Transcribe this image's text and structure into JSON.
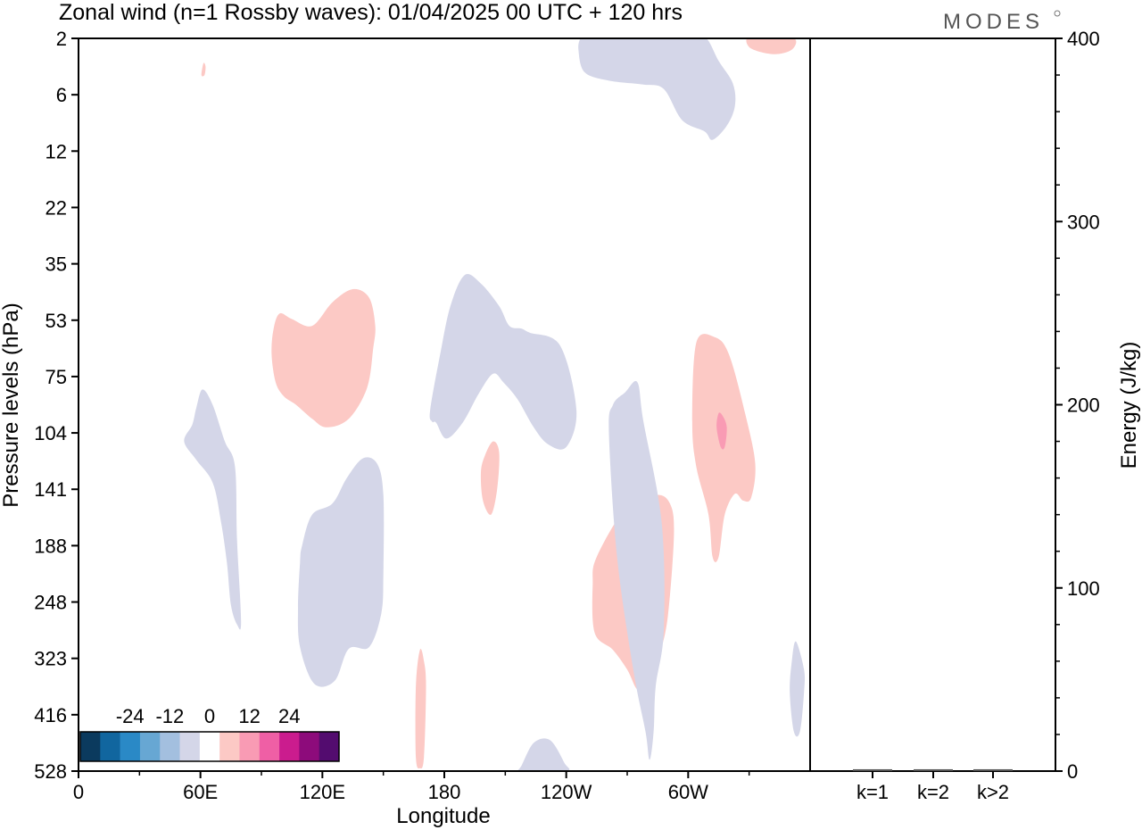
{
  "chart_data": {
    "type": "heatmap",
    "title": "Zonal wind (n=1 Rossby waves):  01/04/2025  00 UTC  + 120 hrs",
    "logo": "MODES",
    "xlabel": "Longitude",
    "ylabel": "Pressure levels (hPa)",
    "y2label": "Energy (J/kg)",
    "x_ticks": [
      "0",
      "60E",
      "120E",
      "180",
      "120W",
      "60W"
    ],
    "x_tick_degrees": [
      0,
      60,
      120,
      180,
      240,
      300
    ],
    "xlim_degrees": [
      0,
      360
    ],
    "y_ticks": [
      "2",
      "6",
      "12",
      "22",
      "35",
      "53",
      "75",
      "104",
      "141",
      "188",
      "248",
      "323",
      "416",
      "528"
    ],
    "y2_ticks": [
      "0",
      "100",
      "200",
      "300",
      "400"
    ],
    "y2lim": [
      0,
      400
    ],
    "energy_categories": [
      "k=1",
      "k=2",
      "k>2"
    ],
    "energy_values": [
      1,
      1,
      1
    ],
    "colorbar": {
      "tick_labels": [
        "-24",
        "-12",
        "0",
        "12",
        "24"
      ],
      "colors": [
        "#0b3a5e",
        "#11669f",
        "#2a89c6",
        "#67a7d3",
        "#a3bfdf",
        "#d4d6e8",
        "#ffffff",
        "#fcc9c5",
        "#f99bb4",
        "#ef5fa5",
        "#cb1c8e",
        "#8d0b7b",
        "#530c6f"
      ]
    },
    "contours": [
      {
        "value": 6,
        "lon": [
          61.5,
          62.5,
          62,
          60.5,
          61.5
        ],
        "lev_index": [
          0.44,
          0.5,
          0.65,
          0.65,
          0.44
        ]
      },
      {
        "value": 6,
        "lon": [
          329,
          337,
          352,
          351,
          342,
          331,
          329
        ],
        "lev_index": [
          0,
          0,
          0,
          0.2,
          0.28,
          0.18,
          0
        ]
      },
      {
        "value": -6,
        "lon": [
          247,
          249,
          262,
          284,
          303,
          309,
          315,
          322,
          323,
          319,
          312,
          308,
          297,
          288,
          278,
          261,
          249,
          246,
          247
        ],
        "lev_index": [
          0,
          0,
          0,
          0,
          0,
          0,
          0.4,
          0.8,
          1.2,
          1.55,
          1.8,
          1.65,
          1.45,
          0.9,
          0.82,
          0.75,
          0.6,
          0.2,
          0
        ]
      },
      {
        "value": 6,
        "lon": [
          99,
          105,
          115,
          125,
          135,
          143,
          146,
          145,
          142,
          133,
          122,
          115,
          107,
          101,
          97,
          95,
          96,
          99
        ],
        "lev_index": [
          4.88,
          4.98,
          5.1,
          4.68,
          4.45,
          4.6,
          5.1,
          5.5,
          6.2,
          6.75,
          6.9,
          6.75,
          6.5,
          6.35,
          6.1,
          5.6,
          5.15,
          4.88
        ]
      },
      {
        "value": -6,
        "lon": [
          173,
          178,
          183,
          190,
          198,
          207,
          212,
          218,
          222,
          237,
          245,
          240,
          231,
          224,
          216,
          209,
          204,
          197,
          189,
          181,
          176,
          174,
          173
        ],
        "lev_index": [
          6.6,
          5.6,
          4.75,
          4.2,
          4.35,
          4.75,
          5.1,
          5.15,
          5.22,
          5.45,
          6.6,
          7.25,
          7.2,
          6.9,
          6.4,
          6.1,
          5.95,
          6.3,
          6.82,
          7.1,
          6.82,
          6.8,
          6.6
        ]
      },
      {
        "value": -6,
        "lon": [
          52,
          56,
          58,
          61,
          66,
          72,
          77,
          78,
          80,
          78,
          75,
          73,
          70,
          66,
          58,
          52
        ],
        "lev_index": [
          7.15,
          6.85,
          6.55,
          6.23,
          6.5,
          7.15,
          7.6,
          8.9,
          10.35,
          10.4,
          10.05,
          9.3,
          8.55,
          7.88,
          7.48,
          7.15
        ]
      },
      {
        "value": -6,
        "lon": [
          110,
          115,
          125,
          132,
          140,
          147,
          150,
          150,
          149,
          143,
          133,
          126,
          116,
          109,
          108,
          109,
          110
        ],
        "lev_index": [
          9.0,
          8.45,
          8.25,
          7.8,
          7.45,
          7.55,
          8.1,
          9.5,
          10.2,
          10.8,
          10.83,
          11.4,
          11.45,
          10.8,
          10.1,
          9.3,
          9.0
        ]
      },
      {
        "value": 6,
        "lon": [
          200,
          204,
          207,
          206,
          203,
          199,
          198,
          200
        ],
        "lev_index": [
          7.4,
          7.15,
          7.35,
          8.0,
          8.45,
          8.2,
          7.7,
          7.4
        ]
      },
      {
        "value": 6,
        "lon": [
          270,
          284,
          291,
          293,
          290,
          286,
          282,
          279,
          275,
          270,
          263,
          254,
          253,
          255,
          270
        ],
        "lev_index": [
          8.3,
          8.1,
          8.25,
          8.8,
          10.25,
          10.9,
          11.1,
          11.35,
          11.55,
          11.2,
          10.85,
          10.55,
          9.7,
          9.2,
          8.3
        ]
      },
      {
        "value": 12,
        "lon": [
          268,
          273,
          275,
          276,
          273,
          271,
          268,
          268
        ],
        "lev_index": [
          9.1,
          9.25,
          9.9,
          10.5,
          10.8,
          10.4,
          9.7,
          9.1
        ]
      },
      {
        "value": -6,
        "lon": [
          269,
          275,
          278,
          287,
          288,
          284,
          283,
          281,
          279,
          273,
          265,
          261,
          263,
          269
        ],
        "lev_index": [
          6.28,
          6.1,
          6.8,
          8.6,
          10.5,
          11.5,
          12.3,
          12.8,
          12.3,
          11.2,
          9.2,
          7.0,
          6.5,
          6.28
        ]
      },
      {
        "value": 6,
        "lon": [
          304,
          313,
          320,
          328,
          333,
          331,
          327,
          323,
          318,
          315,
          312,
          310,
          304,
          302,
          304
        ],
        "lev_index": [
          5.4,
          5.3,
          5.6,
          6.65,
          7.55,
          8.15,
          8.2,
          8.08,
          8.45,
          9.2,
          9.2,
          8.45,
          7.6,
          6.8,
          5.4
        ]
      },
      {
        "value": 12,
        "lon": [
          315,
          317,
          319,
          318,
          316,
          314,
          315
        ],
        "lev_index": [
          6.65,
          6.7,
          6.9,
          7.25,
          7.25,
          6.9,
          6.65
        ]
      },
      {
        "value": -6,
        "lon": [
          353,
          357,
          357,
          355,
          352,
          350,
          351,
          353
        ],
        "lev_index": [
          10.7,
          11.2,
          11.6,
          12.3,
          12.3,
          11.6,
          11.05,
          10.7
        ]
      },
      {
        "value": 6,
        "lon": [
          168,
          170,
          171,
          170,
          168,
          166,
          166,
          168
        ],
        "lev_index": [
          10.85,
          11.05,
          11.5,
          12.75,
          12.95,
          12.75,
          11.5,
          10.85
        ]
      },
      {
        "value": -6,
        "lon": [
          218,
          224,
          232,
          239,
          240,
          218,
          216,
          218
        ],
        "lev_index": [
          12.9,
          12.5,
          12.45,
          12.85,
          13.0,
          13.0,
          13.0,
          12.9
        ]
      }
    ]
  }
}
